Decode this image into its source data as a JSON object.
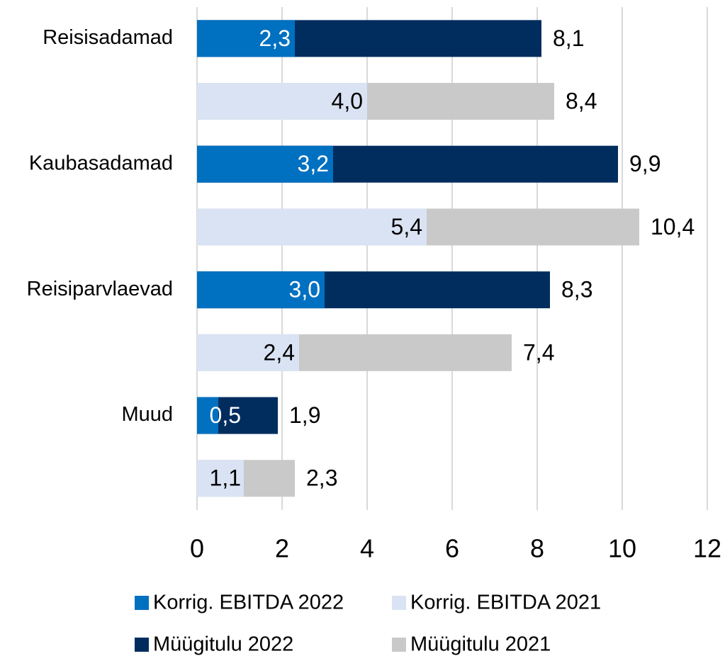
{
  "chart_data": {
    "type": "hbar_overlay",
    "categories": [
      "Reisisadamad",
      "Kaubasadamad",
      "Reisiparvlaevad",
      "Muud"
    ],
    "series": [
      {
        "name": "Korrig. EBITDA 2022",
        "color": "#0070c0",
        "values": [
          2.3,
          3.2,
          3.0,
          0.5
        ],
        "value_labels": [
          "2,3",
          "3,2",
          "3,0",
          "0,5"
        ]
      },
      {
        "name": "Korrig. EBITDA 2021",
        "color": "#dae3f3",
        "values": [
          4.0,
          5.4,
          2.4,
          1.1
        ],
        "value_labels": [
          "4,0",
          "5,4",
          "2,4",
          "1,1"
        ]
      },
      {
        "name": "Müügitulu 2022",
        "color": "#002d5e",
        "values": [
          8.1,
          9.9,
          8.3,
          1.9
        ],
        "value_labels": [
          "8,1",
          "9,9",
          "8,3",
          "1,9"
        ]
      },
      {
        "name": "Müügitulu 2021",
        "color": "#c9c9c9",
        "values": [
          8.4,
          10.4,
          7.4,
          2.3
        ],
        "value_labels": [
          "8,4",
          "10,4",
          "7,4",
          "2,3"
        ]
      }
    ],
    "xlim": [
      0,
      12
    ],
    "xticks": [
      0,
      2,
      4,
      6,
      8,
      10,
      12
    ],
    "grid": true
  }
}
